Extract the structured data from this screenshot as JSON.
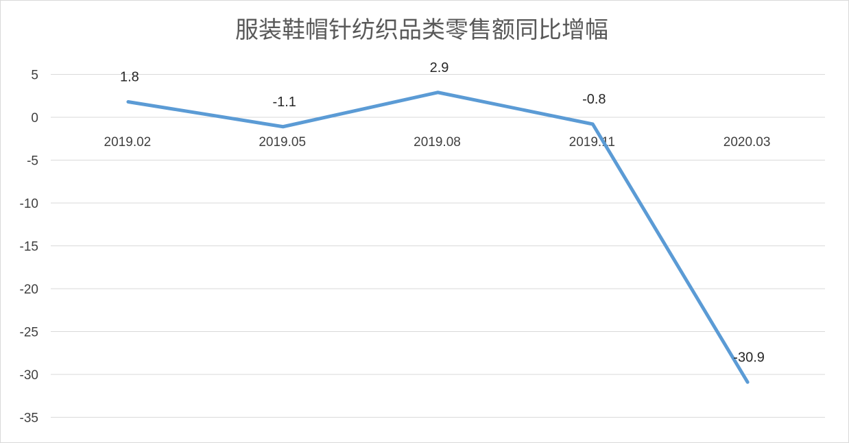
{
  "chart_data": {
    "type": "line",
    "title": "服装鞋帽针纺织品类零售额同比增幅",
    "categories": [
      "2019.02",
      "2019.05",
      "2019.08",
      "2019.11",
      "2020.03"
    ],
    "series": [
      {
        "values": [
          1.8,
          -1.1,
          2.9,
          -0.8,
          -30.9
        ],
        "labels": [
          "1.8",
          "-1.1",
          "2.9",
          "-0.8",
          "-30.9"
        ]
      }
    ],
    "ylim": [
      -35,
      5
    ],
    "yticks": [
      5,
      0,
      -5,
      -10,
      -15,
      -20,
      -25,
      -30,
      -35
    ],
    "ytick_labels": [
      "5",
      "0",
      "-5",
      "-10",
      "-15",
      "-20",
      "-25",
      "-30",
      "-35"
    ],
    "grid": true,
    "legend": "none",
    "colors": {
      "series": "#5b9bd5",
      "grid": "#d9d9d9",
      "title": "#595959"
    }
  }
}
